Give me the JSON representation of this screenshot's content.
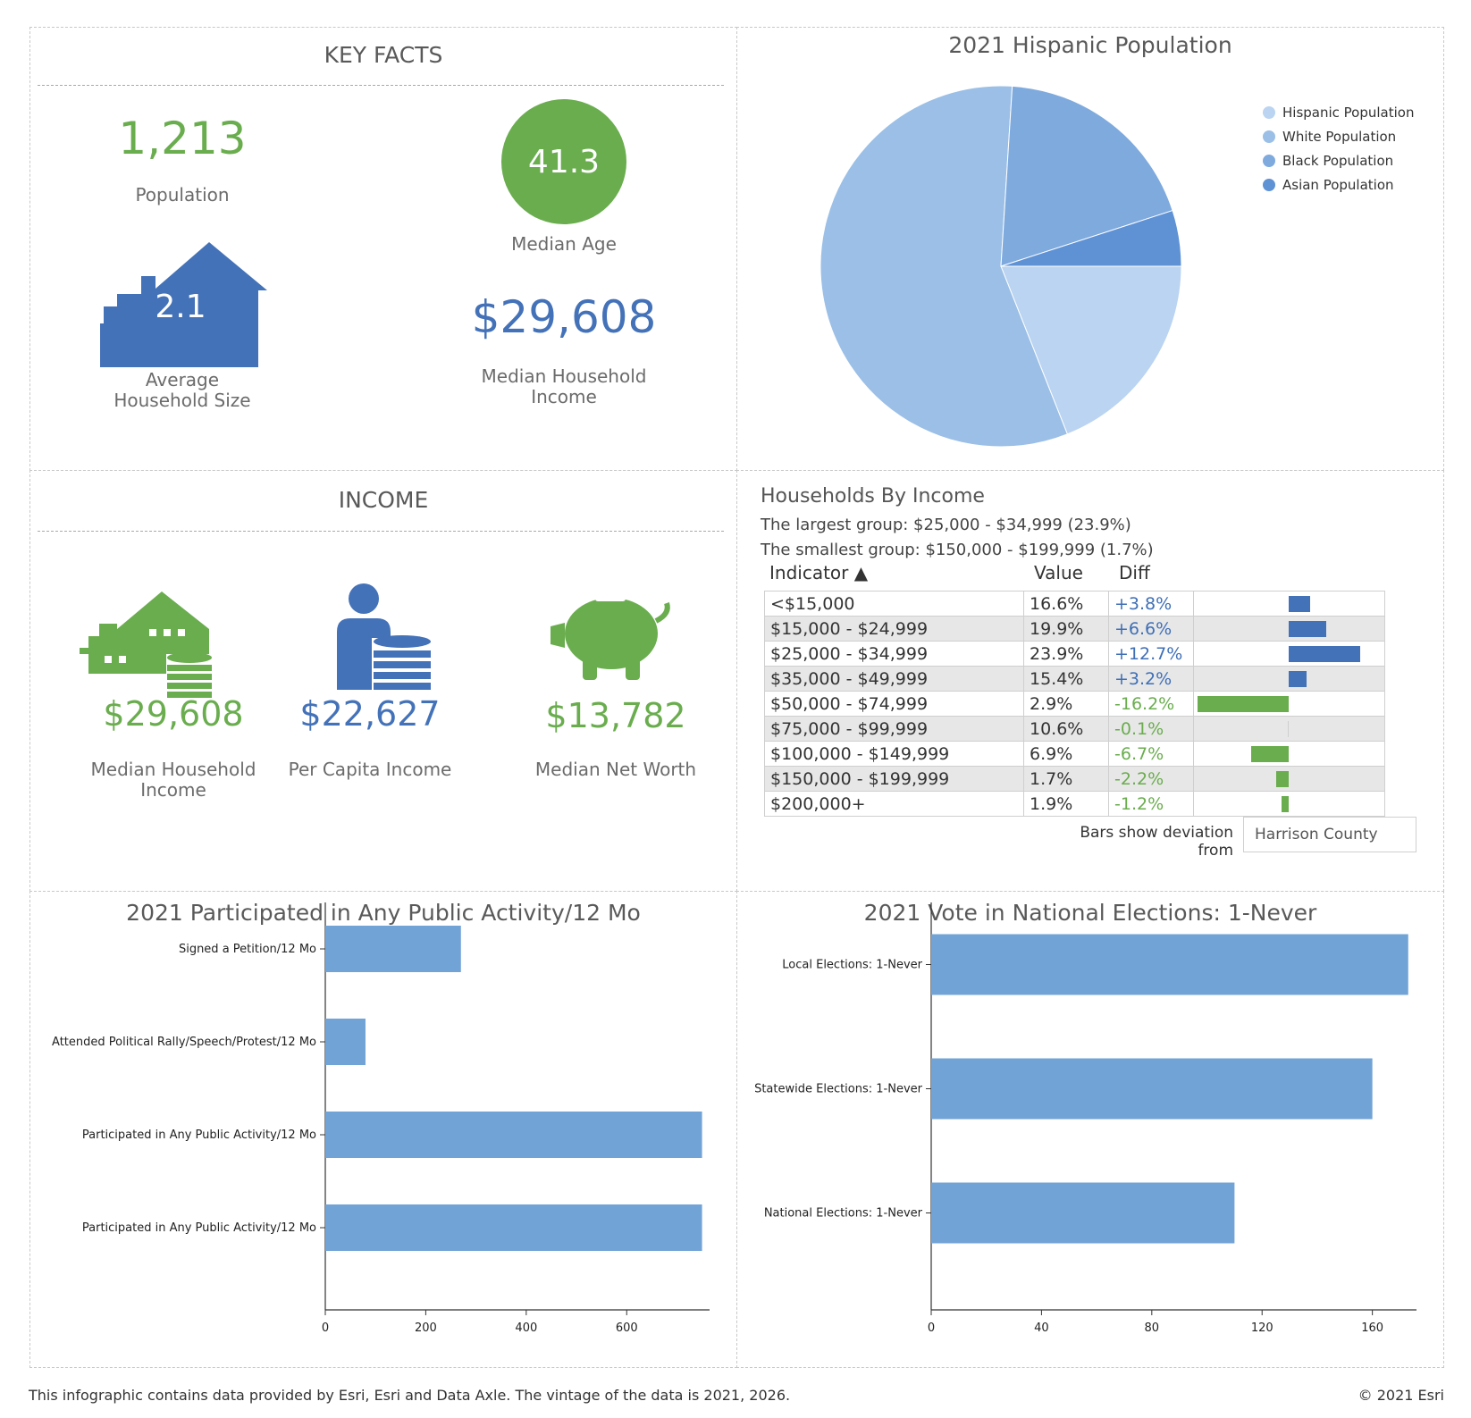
{
  "key_facts": {
    "title": "KEY FACTS",
    "population_value": "1,213",
    "population_label": "Population",
    "median_age_value": "41.3",
    "median_age_label": "Median Age",
    "household_size_value": "2.1",
    "household_size_label_1": "Average",
    "household_size_label_2": "Household Size",
    "median_hh_income_value": "$29,608",
    "median_hh_income_label_1": "Median Household",
    "median_hh_income_label_2": "Income"
  },
  "income": {
    "title": "INCOME",
    "median_hh_income_value": "$29,608",
    "median_hh_income_label_1": "Median Household",
    "median_hh_income_label_2": "Income",
    "per_capita_value": "$22,627",
    "per_capita_label": "Per Capita Income",
    "net_worth_value": "$13,782",
    "net_worth_label": "Median Net Worth"
  },
  "households_by_income": {
    "title": "Households By Income",
    "largest": "The largest group: $25,000 - $34,999 (23.9%)",
    "smallest": "The smallest group: $150,000 - $199,999 (1.7%)",
    "col_indicator": "Indicator ▲",
    "col_value": "Value",
    "col_diff": "Diff",
    "deviation_label": "Bars show deviation from",
    "deviation_value": "Harrison County",
    "rows": [
      {
        "indicator": "<$15,000",
        "value": "16.6%",
        "diff": "+3.8%",
        "diff_num": 3.8
      },
      {
        "indicator": "$15,000 - $24,999",
        "value": "19.9%",
        "diff": "+6.6%",
        "diff_num": 6.6
      },
      {
        "indicator": "$25,000 - $34,999",
        "value": "23.9%",
        "diff": "+12.7%",
        "diff_num": 12.7
      },
      {
        "indicator": "$35,000 - $49,999",
        "value": "15.4%",
        "diff": "+3.2%",
        "diff_num": 3.2
      },
      {
        "indicator": "$50,000 - $74,999",
        "value": "2.9%",
        "diff": "-16.2%",
        "diff_num": -16.2
      },
      {
        "indicator": "$75,000 - $99,999",
        "value": "10.6%",
        "diff": "-0.1%",
        "diff_num": -0.1
      },
      {
        "indicator": "$100,000 - $149,999",
        "value": "6.9%",
        "diff": "-6.7%",
        "diff_num": -6.7
      },
      {
        "indicator": "$150,000 - $199,999",
        "value": "1.7%",
        "diff": "-2.2%",
        "diff_num": -2.2
      },
      {
        "indicator": "$200,000+",
        "value": "1.9%",
        "diff": "-1.2%",
        "diff_num": -1.2
      }
    ]
  },
  "colors": {
    "green": "#6aad4e",
    "blue": "#4472b8",
    "bar_blue": "#72a3d6"
  },
  "footer": {
    "left": "This infographic contains data provided by Esri, Esri and Data Axle. The vintage of the data is 2021, 2026.",
    "right": "© 2021 Esri"
  },
  "chart_data": [
    {
      "type": "pie",
      "title": "2021 Hispanic Population",
      "legend_position": "top-right",
      "series": [
        {
          "name": "Hispanic Population",
          "value": 19,
          "color": "#bad4f1"
        },
        {
          "name": "White Population",
          "value": 57,
          "color": "#9bbfe6"
        },
        {
          "name": "Black Population",
          "value": 19,
          "color": "#7eaade"
        },
        {
          "name": "Asian Population",
          "value": 5,
          "color": "#5f92d5"
        }
      ]
    },
    {
      "type": "bar",
      "orientation": "horizontal",
      "title": "2021 Participated in Any Public Activity/12 Mo",
      "categories": [
        "Signed a Petition/12 Mo",
        "Attended Political Rally/Speech/Protest/12 Mo",
        "Participated in Any Public Activity/12 Mo",
        "Participated in Any Public Activity/12 Mo"
      ],
      "values": [
        270,
        80,
        750,
        750
      ],
      "xlim": [
        0,
        765
      ],
      "xticks": [
        0,
        200,
        400,
        600
      ]
    },
    {
      "type": "bar",
      "orientation": "horizontal",
      "title": "2021 Vote in National Elections: 1-Never",
      "categories": [
        "Local Elections: 1-Never",
        "Statewide Elections: 1-Never",
        "National Elections: 1-Never"
      ],
      "values": [
        173,
        160,
        110
      ],
      "xlim": [
        0,
        176
      ],
      "xticks": [
        0,
        40,
        80,
        120,
        160
      ]
    }
  ]
}
